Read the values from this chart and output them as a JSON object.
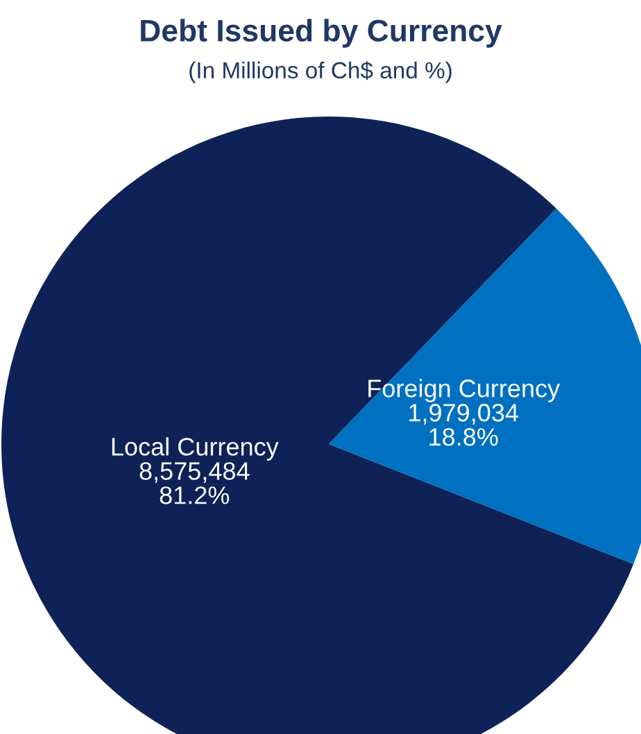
{
  "chart_data": {
    "type": "pie",
    "title": "Debt Issued by Currency",
    "subtitle": "(In Millions of Ch$ and %)",
    "categories": [
      "Local Currency",
      "Foreign Currency"
    ],
    "values": [
      8575484,
      1979034
    ],
    "value_labels": [
      "8,575,484\n81.2%",
      "1,979,034\n18.8%"
    ],
    "colors": [
      "#0e2258",
      "#0070c0"
    ],
    "legend": false
  }
}
